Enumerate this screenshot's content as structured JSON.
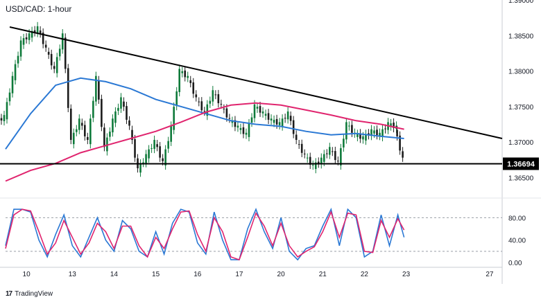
{
  "title": "USD/CAD: 1-hour",
  "brand": {
    "logo_icon": "tradingview-logo-icon",
    "label": "TradingView"
  },
  "chart_data": {
    "type": "candlestick",
    "title": "USD/CAD: 1-hour",
    "price_axis": {
      "ylim": [
        1.3625,
        1.39
      ],
      "ticks": [
        "1.36500",
        "1.37000",
        "1.37500",
        "1.38000",
        "1.38500",
        "1.39000"
      ],
      "tick_values": [
        1.365,
        1.37,
        1.375,
        1.38,
        1.385,
        1.39
      ],
      "current_price": "1.36694",
      "current_value": 1.36694
    },
    "x_axis": {
      "labels": [
        "10",
        "13",
        "14",
        "15",
        "16",
        "17",
        "20",
        "21",
        "22",
        "23",
        "27"
      ],
      "xlim": [
        -0.2,
        11.7
      ],
      "label_positions": [
        0.3,
        1.4,
        2.4,
        3.4,
        4.4,
        5.4,
        6.4,
        7.4,
        8.4,
        9.4,
        11.4
      ]
    },
    "grid": false,
    "series": [
      {
        "kind": "candles",
        "color_up": "#0e7a3a",
        "color_down": "#1b1b1b",
        "points": [
          [
            -0.2,
            1.3735
          ],
          [
            0.0,
            1.379
          ],
          [
            0.2,
            1.384
          ],
          [
            0.4,
            1.385
          ],
          [
            0.6,
            1.386
          ],
          [
            0.8,
            1.383
          ],
          [
            1.0,
            1.38
          ],
          [
            1.2,
            1.385
          ],
          [
            1.4,
            1.37
          ],
          [
            1.6,
            1.373
          ],
          [
            1.8,
            1.37
          ],
          [
            2.0,
            1.379
          ],
          [
            2.2,
            1.369
          ],
          [
            2.4,
            1.373
          ],
          [
            2.6,
            1.376
          ],
          [
            2.8,
            1.372
          ],
          [
            3.0,
            1.366
          ],
          [
            3.2,
            1.368
          ],
          [
            3.4,
            1.37
          ],
          [
            3.6,
            1.367
          ],
          [
            3.8,
            1.372
          ],
          [
            4.0,
            1.38
          ],
          [
            4.2,
            1.379
          ],
          [
            4.4,
            1.376
          ],
          [
            4.6,
            1.374
          ],
          [
            4.8,
            1.377
          ],
          [
            5.0,
            1.375
          ],
          [
            5.2,
            1.373
          ],
          [
            5.4,
            1.372
          ],
          [
            5.6,
            1.371
          ],
          [
            5.8,
            1.375
          ],
          [
            6.0,
            1.374
          ],
          [
            6.2,
            1.373
          ],
          [
            6.4,
            1.3725
          ],
          [
            6.6,
            1.374
          ],
          [
            6.8,
            1.37
          ],
          [
            7.0,
            1.368
          ],
          [
            7.2,
            1.3665
          ],
          [
            7.4,
            1.3675
          ],
          [
            7.6,
            1.369
          ],
          [
            7.8,
            1.367
          ],
          [
            8.0,
            1.3725
          ],
          [
            8.2,
            1.371
          ],
          [
            8.4,
            1.3705
          ],
          [
            8.6,
            1.3715
          ],
          [
            8.8,
            1.371
          ],
          [
            9.0,
            1.3725
          ],
          [
            9.2,
            1.372
          ],
          [
            9.35,
            1.3675
          ]
        ]
      },
      {
        "kind": "line",
        "name": "",
        "color": "#2a78d4",
        "points": [
          [
            -0.2,
            1.369
          ],
          [
            0.4,
            1.374
          ],
          [
            1.0,
            1.378
          ],
          [
            1.6,
            1.379
          ],
          [
            2.2,
            1.3785
          ],
          [
            2.8,
            1.3775
          ],
          [
            3.4,
            1.376
          ],
          [
            4.0,
            1.375
          ],
          [
            4.6,
            1.374
          ],
          [
            5.2,
            1.373
          ],
          [
            5.8,
            1.3725
          ],
          [
            6.4,
            1.3722
          ],
          [
            7.0,
            1.3715
          ],
          [
            7.6,
            1.371
          ],
          [
            8.2,
            1.3712
          ],
          [
            8.8,
            1.3708
          ],
          [
            9.35,
            1.3705
          ]
        ]
      },
      {
        "kind": "line",
        "name": "",
        "color": "#e0246e",
        "points": [
          [
            -0.2,
            1.3645
          ],
          [
            0.4,
            1.366
          ],
          [
            1.0,
            1.367
          ],
          [
            1.6,
            1.3685
          ],
          [
            2.2,
            1.3695
          ],
          [
            2.8,
            1.3705
          ],
          [
            3.4,
            1.3715
          ],
          [
            4.0,
            1.3728
          ],
          [
            4.6,
            1.3742
          ],
          [
            5.2,
            1.3752
          ],
          [
            5.8,
            1.3755
          ],
          [
            6.4,
            1.3752
          ],
          [
            7.0,
            1.3745
          ],
          [
            7.6,
            1.3738
          ],
          [
            8.2,
            1.373
          ],
          [
            8.8,
            1.3725
          ],
          [
            9.35,
            1.3718
          ]
        ]
      }
    ],
    "annotations": [
      {
        "kind": "trendline",
        "color": "#000000",
        "points": [
          [
            -0.1,
            1.3862
          ],
          [
            11.7,
            1.3705
          ]
        ]
      },
      {
        "kind": "horizontal-line",
        "color": "#000000",
        "value": 1.36694
      }
    ],
    "oscillator": {
      "type": "stochastic",
      "ylim": [
        -6,
        110
      ],
      "ticks": [
        "0.00",
        "40.00",
        "80.00"
      ],
      "tick_values": [
        0,
        40,
        80
      ],
      "levels": [
        80,
        20
      ],
      "k": {
        "color": "#2a78d4",
        "points": [
          [
            -0.2,
            30
          ],
          [
            0.0,
            95
          ],
          [
            0.2,
            95
          ],
          [
            0.4,
            90
          ],
          [
            0.6,
            40
          ],
          [
            0.8,
            10
          ],
          [
            1.0,
            50
          ],
          [
            1.2,
            85
          ],
          [
            1.4,
            30
          ],
          [
            1.6,
            10
          ],
          [
            1.8,
            45
          ],
          [
            2.0,
            80
          ],
          [
            2.2,
            40
          ],
          [
            2.4,
            20
          ],
          [
            2.6,
            75
          ],
          [
            2.8,
            60
          ],
          [
            3.0,
            20
          ],
          [
            3.2,
            10
          ],
          [
            3.4,
            55
          ],
          [
            3.6,
            15
          ],
          [
            3.8,
            70
          ],
          [
            4.0,
            95
          ],
          [
            4.2,
            90
          ],
          [
            4.4,
            35
          ],
          [
            4.6,
            15
          ],
          [
            4.8,
            90
          ],
          [
            5.0,
            40
          ],
          [
            5.2,
            5
          ],
          [
            5.4,
            5
          ],
          [
            5.6,
            60
          ],
          [
            5.8,
            95
          ],
          [
            6.0,
            55
          ],
          [
            6.2,
            25
          ],
          [
            6.4,
            80
          ],
          [
            6.6,
            20
          ],
          [
            6.8,
            5
          ],
          [
            7.0,
            25
          ],
          [
            7.2,
            30
          ],
          [
            7.4,
            65
          ],
          [
            7.6,
            95
          ],
          [
            7.8,
            30
          ],
          [
            8.0,
            95
          ],
          [
            8.2,
            80
          ],
          [
            8.4,
            10
          ],
          [
            8.6,
            20
          ],
          [
            8.8,
            85
          ],
          [
            9.0,
            30
          ],
          [
            9.2,
            85
          ],
          [
            9.35,
            45
          ]
        ]
      },
      "d": {
        "color": "#e0246e",
        "points": [
          [
            -0.2,
            25
          ],
          [
            0.0,
            85
          ],
          [
            0.2,
            95
          ],
          [
            0.4,
            92
          ],
          [
            0.6,
            55
          ],
          [
            0.8,
            15
          ],
          [
            1.0,
            35
          ],
          [
            1.2,
            75
          ],
          [
            1.4,
            45
          ],
          [
            1.6,
            15
          ],
          [
            1.8,
            35
          ],
          [
            2.0,
            70
          ],
          [
            2.2,
            55
          ],
          [
            2.4,
            25
          ],
          [
            2.6,
            65
          ],
          [
            2.8,
            65
          ],
          [
            3.0,
            30
          ],
          [
            3.2,
            10
          ],
          [
            3.4,
            45
          ],
          [
            3.6,
            25
          ],
          [
            3.8,
            60
          ],
          [
            4.0,
            90
          ],
          [
            4.2,
            92
          ],
          [
            4.4,
            50
          ],
          [
            4.6,
            20
          ],
          [
            4.8,
            80
          ],
          [
            5.0,
            55
          ],
          [
            5.2,
            10
          ],
          [
            5.4,
            5
          ],
          [
            5.6,
            45
          ],
          [
            5.8,
            88
          ],
          [
            6.0,
            65
          ],
          [
            6.2,
            30
          ],
          [
            6.4,
            70
          ],
          [
            6.6,
            30
          ],
          [
            6.8,
            10
          ],
          [
            7.0,
            20
          ],
          [
            7.2,
            28
          ],
          [
            7.4,
            55
          ],
          [
            7.6,
            90
          ],
          [
            7.8,
            45
          ],
          [
            8.0,
            88
          ],
          [
            8.2,
            85
          ],
          [
            8.4,
            20
          ],
          [
            8.6,
            18
          ],
          [
            8.8,
            75
          ],
          [
            9.0,
            45
          ],
          [
            9.2,
            78
          ],
          [
            9.35,
            58
          ]
        ]
      }
    }
  }
}
